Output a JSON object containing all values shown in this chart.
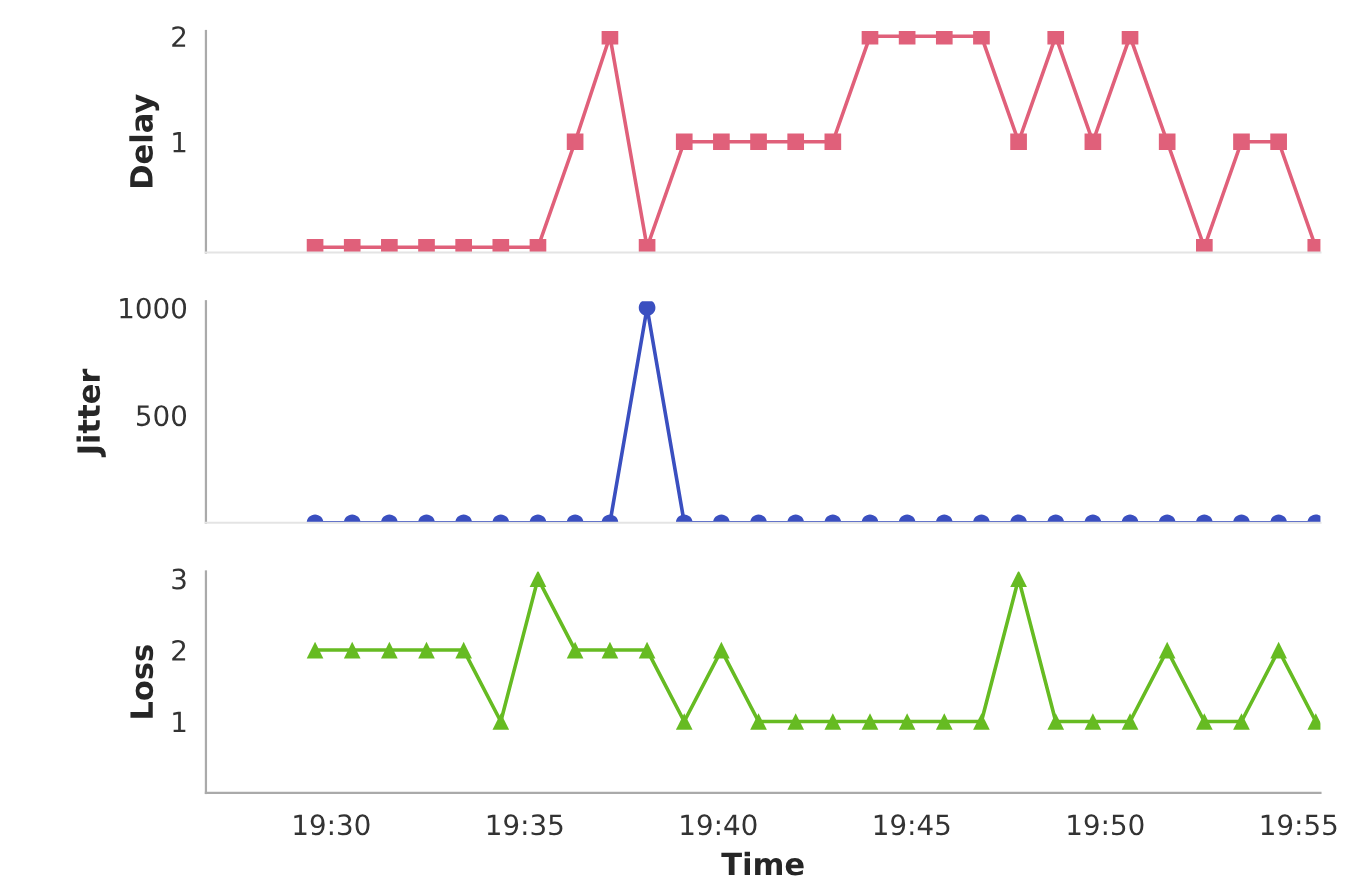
{
  "chart_data": [
    {
      "type": "line",
      "ylabel": "Delay",
      "marker": "square",
      "tick_labels": "y",
      "xlim": [
        19.446,
        19.926
      ],
      "xticks": [
        {
          "value": 19.5,
          "label": null
        },
        {
          "value": 19.58333,
          "label": null
        },
        {
          "value": 19.66667,
          "label": null
        },
        {
          "value": 19.75,
          "label": null
        },
        {
          "value": 19.83333,
          "label": null
        },
        {
          "value": 19.91667,
          "label": null
        }
      ],
      "ylim": [
        -0.05,
        2.05
      ],
      "yticks": [
        1,
        2
      ],
      "x": [
        19.493,
        19.509,
        19.525,
        19.541,
        19.557,
        19.573,
        19.589,
        19.605,
        19.62,
        19.636,
        19.652,
        19.668,
        19.684,
        19.7,
        19.716,
        19.732,
        19.748,
        19.764,
        19.78,
        19.796,
        19.812,
        19.828,
        19.844,
        19.86,
        19.876,
        19.892,
        19.908,
        19.924
      ],
      "series": [
        {
          "color": "#e0607a",
          "values": [
            0,
            0,
            0,
            0,
            0,
            0,
            0,
            1,
            2,
            0,
            1,
            1,
            1,
            1,
            1,
            2,
            2,
            2,
            2,
            1,
            2,
            1,
            2,
            1,
            0,
            1,
            1,
            0
          ]
        }
      ]
    },
    {
      "type": "line",
      "ylabel": "Jitter",
      "marker": "circle",
      "tick_labels": "y",
      "xlim": [
        19.446,
        19.926
      ],
      "xticks": [
        {
          "value": 19.5,
          "label": null
        },
        {
          "value": 19.58333,
          "label": null
        },
        {
          "value": 19.66667,
          "label": null
        },
        {
          "value": 19.75,
          "label": null
        },
        {
          "value": 19.83333,
          "label": null
        },
        {
          "value": 19.91667,
          "label": null
        }
      ],
      "ylim": [
        0,
        1030
      ],
      "yticks": [
        500,
        1000
      ],
      "x": [
        19.493,
        19.509,
        19.525,
        19.541,
        19.557,
        19.573,
        19.589,
        19.605,
        19.62,
        19.636,
        19.652,
        19.668,
        19.684,
        19.7,
        19.716,
        19.732,
        19.748,
        19.764,
        19.78,
        19.796,
        19.812,
        19.828,
        19.844,
        19.86,
        19.876,
        19.892,
        19.908,
        19.924
      ],
      "series": [
        {
          "color": "#3a4fc0",
          "values": [
            0,
            0,
            0,
            0,
            0,
            0,
            0,
            0,
            0,
            1000,
            0,
            0,
            0,
            0,
            0,
            0,
            0,
            0,
            0,
            0,
            0,
            0,
            0,
            0,
            0,
            0,
            0,
            0
          ]
        }
      ]
    },
    {
      "type": "line",
      "ylabel": "Loss",
      "xlabel": "Time",
      "marker": "triangle",
      "xlim": [
        19.446,
        19.926
      ],
      "ylim": [
        0,
        3.1
      ],
      "yticks": [
        1,
        2,
        3
      ],
      "xticks": [
        {
          "value": 19.5,
          "label": "19:30"
        },
        {
          "value": 19.58333,
          "label": "19:35"
        },
        {
          "value": 19.66667,
          "label": "19:40"
        },
        {
          "value": 19.75,
          "label": "19:45"
        },
        {
          "value": 19.83333,
          "label": "19:50"
        },
        {
          "value": 19.91667,
          "label": "19:55"
        }
      ],
      "x": [
        19.493,
        19.509,
        19.525,
        19.541,
        19.557,
        19.573,
        19.589,
        19.605,
        19.62,
        19.636,
        19.652,
        19.668,
        19.684,
        19.7,
        19.716,
        19.732,
        19.748,
        19.764,
        19.78,
        19.796,
        19.812,
        19.828,
        19.844,
        19.86,
        19.876,
        19.892,
        19.908,
        19.924
      ],
      "series": [
        {
          "color": "#66bb22",
          "values": [
            2,
            2,
            2,
            2,
            2,
            1,
            3,
            2,
            2,
            2,
            1,
            2,
            1,
            1,
            1,
            1,
            1,
            1,
            1,
            3,
            1,
            1,
            1,
            2,
            1,
            1,
            2,
            1
          ]
        }
      ]
    }
  ]
}
